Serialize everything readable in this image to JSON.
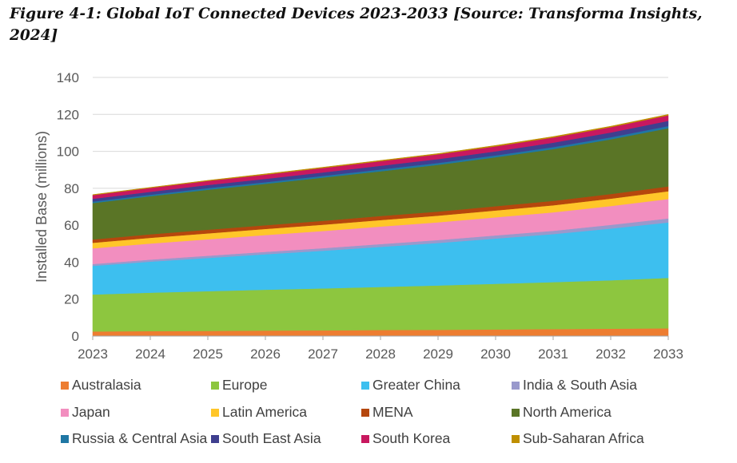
{
  "figure": {
    "title": "Figure 4-1: Global IoT Connected Devices 2023-2033 [Source: Transforma Insights, 2024]"
  },
  "chart_data": {
    "type": "area",
    "stacked": true,
    "title": "",
    "xlabel": "",
    "ylabel": "Installed Base (millions)",
    "ylim": [
      0,
      140
    ],
    "yticks": [
      0,
      20,
      40,
      60,
      80,
      100,
      120,
      140
    ],
    "grid": true,
    "legend_position": "bottom",
    "x": [
      "2023",
      "2024",
      "2025",
      "2026",
      "2027",
      "2028",
      "2029",
      "2030",
      "2031",
      "2032",
      "2033"
    ],
    "series": [
      {
        "name": "Australasia",
        "color": "#ED7D31",
        "values": [
          2.5,
          2.7,
          2.8,
          3.0,
          3.1,
          3.3,
          3.4,
          3.6,
          3.8,
          4.0,
          4.2
        ]
      },
      {
        "name": "Europe",
        "color": "#8DC63F",
        "values": [
          20.0,
          20.8,
          21.5,
          22.1,
          22.7,
          23.3,
          24.0,
          24.7,
          25.4,
          26.2,
          27.3
        ]
      },
      {
        "name": "Greater China",
        "color": "#3DBFEF",
        "values": [
          15.5,
          16.8,
          18.0,
          19.2,
          20.4,
          21.7,
          23.0,
          24.5,
          26.0,
          28.0,
          30.0
        ]
      },
      {
        "name": "India & South Asia",
        "color": "#9999CC",
        "values": [
          1.0,
          1.1,
          1.2,
          1.3,
          1.4,
          1.5,
          1.6,
          1.7,
          1.8,
          2.0,
          2.2
        ]
      },
      {
        "name": "Japan",
        "color": "#F28EBF",
        "values": [
          8.5,
          8.7,
          8.9,
          9.1,
          9.3,
          9.5,
          9.6,
          9.8,
          10.0,
          10.2,
          10.5
        ]
      },
      {
        "name": "Latin America",
        "color": "#FFC629",
        "values": [
          3.0,
          3.1,
          3.2,
          3.3,
          3.4,
          3.5,
          3.6,
          3.7,
          3.8,
          4.0,
          4.2
        ]
      },
      {
        "name": "MENA",
        "color": "#B5470D",
        "values": [
          1.8,
          1.9,
          2.0,
          2.0,
          2.1,
          2.2,
          2.2,
          2.3,
          2.4,
          2.5,
          2.6
        ]
      },
      {
        "name": "North America",
        "color": "#5A7526",
        "values": [
          19.7,
          20.6,
          21.6,
          22.4,
          23.4,
          24.2,
          25.3,
          26.5,
          28.0,
          29.6,
          31.5
        ]
      },
      {
        "name": "Russia & Central Asia",
        "color": "#1F77A4",
        "values": [
          0.8,
          0.8,
          0.9,
          0.9,
          0.9,
          1.0,
          1.0,
          1.0,
          1.1,
          1.1,
          1.2
        ]
      },
      {
        "name": "South East Asia",
        "color": "#3F3F8F",
        "values": [
          1.5,
          1.6,
          1.7,
          1.8,
          1.9,
          2.0,
          2.1,
          2.2,
          2.4,
          2.6,
          2.8
        ]
      },
      {
        "name": "South Korea",
        "color": "#C8185F",
        "values": [
          2.0,
          2.1,
          2.2,
          2.3,
          2.4,
          2.5,
          2.6,
          2.7,
          2.8,
          2.9,
          3.0
        ]
      },
      {
        "name": "Sub-Saharan Africa",
        "color": "#BF8F00",
        "values": [
          0.3,
          0.3,
          0.3,
          0.4,
          0.4,
          0.4,
          0.4,
          0.5,
          0.5,
          0.5,
          0.5
        ]
      }
    ]
  }
}
